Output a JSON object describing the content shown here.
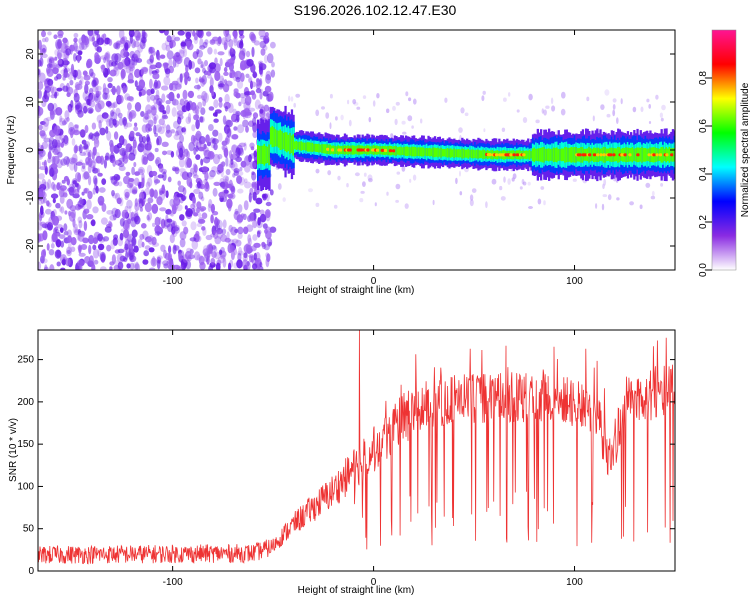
{
  "title": "S196.2026.102.12.47.E30",
  "chart_data": [
    {
      "type": "heatmap",
      "name": "spectrogram",
      "xlabel": "Height of straight line (km)",
      "ylabel": "Frequency (Hz)",
      "xlim": [
        -167,
        150
      ],
      "ylim": [
        -25,
        25
      ],
      "xticks": [
        -100,
        0,
        100
      ],
      "xtick_labels": [
        "-100",
        "0",
        "100"
      ],
      "yticks": [
        -20,
        -10,
        0,
        10,
        20
      ],
      "ytick_labels": [
        "-20",
        "-10",
        "0",
        "10",
        "20"
      ],
      "noise_region_x": [
        -167,
        -50
      ],
      "signal_band": {
        "center_hz": [
          {
            "x": -52,
            "f": 3
          },
          {
            "x": -40,
            "f": 1
          },
          {
            "x": -20,
            "f": 0
          },
          {
            "x": 0,
            "f": 0
          },
          {
            "x": 60,
            "f": -1
          },
          {
            "x": 80,
            "f": -1
          },
          {
            "x": 150,
            "f": -1
          }
        ],
        "peak_x_ranges": [
          [
            -25,
            10
          ],
          [
            55,
            75
          ],
          [
            100,
            150
          ]
        ]
      },
      "colorbar": {
        "label": "Normalized spectral amplitude",
        "range": [
          0,
          1
        ],
        "ticks": [
          0.0,
          0.2,
          0.4,
          0.6,
          0.8
        ],
        "tick_labels": [
          "0.0",
          "0.2",
          "0.4",
          "0.6",
          "0.8"
        ],
        "colors": [
          "#ffffff",
          "#8a2be2",
          "#0000ff",
          "#00ffff",
          "#00ff00",
          "#ffff00",
          "#ff0000",
          "#ff1493"
        ]
      }
    },
    {
      "type": "line",
      "name": "snr",
      "xlabel": "Height of straight line (km)",
      "ylabel": "SNR (10 * v/v)",
      "xlim": [
        -167,
        150
      ],
      "ylim": [
        0,
        285
      ],
      "xticks": [
        -100,
        0,
        100
      ],
      "xtick_labels": [
        "-100",
        "0",
        "100"
      ],
      "yticks": [
        0,
        50,
        100,
        150,
        200,
        250
      ],
      "ytick_labels": [
        "0",
        "50",
        "100",
        "150",
        "200",
        "250"
      ],
      "color": "#ee3333",
      "envelope": [
        {
          "x": -167,
          "y": 20
        },
        {
          "x": -60,
          "y": 22
        },
        {
          "x": -50,
          "y": 30
        },
        {
          "x": -40,
          "y": 55
        },
        {
          "x": -30,
          "y": 75
        },
        {
          "x": -20,
          "y": 95
        },
        {
          "x": -10,
          "y": 120
        },
        {
          "x": 0,
          "y": 145
        },
        {
          "x": 10,
          "y": 170
        },
        {
          "x": 20,
          "y": 188
        },
        {
          "x": 30,
          "y": 200
        },
        {
          "x": 60,
          "y": 205
        },
        {
          "x": 90,
          "y": 205
        },
        {
          "x": 110,
          "y": 190
        },
        {
          "x": 118,
          "y": 130
        },
        {
          "x": 125,
          "y": 200
        },
        {
          "x": 150,
          "y": 215
        }
      ],
      "spikes": [
        {
          "x": -7,
          "y": 285
        }
      ]
    }
  ]
}
